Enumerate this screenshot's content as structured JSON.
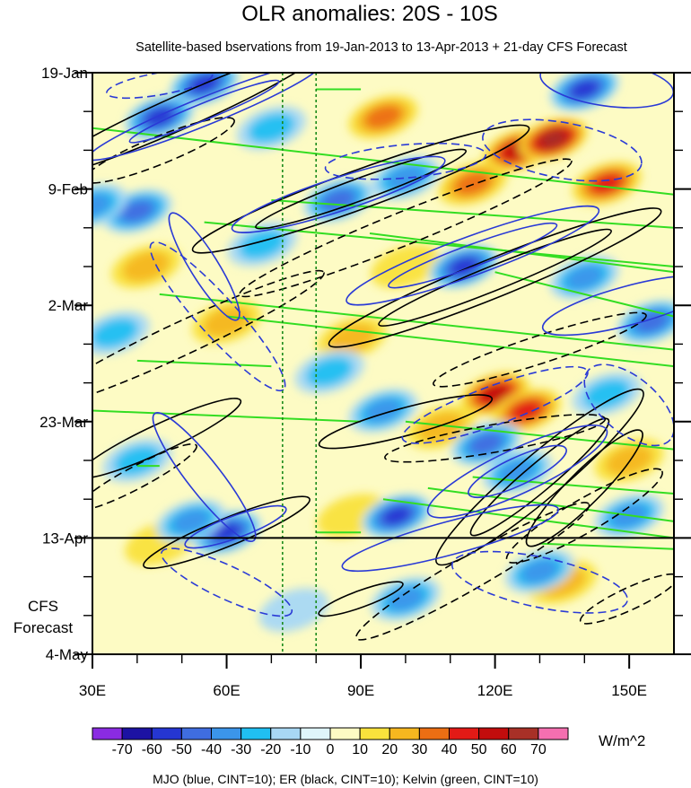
{
  "chart_data": {
    "type": "heatmap",
    "title": "OLR anomalies: 20S - 10S",
    "subtitle": "Satellite-based bservations from 19-Jan-2013 to 13-Apr-2013 + 21-day CFS Forecast",
    "x_range": [
      30,
      160
    ],
    "x_ticks": [
      {
        "label": "30E",
        "value": 30
      },
      {
        "label": "60E",
        "value": 60
      },
      {
        "label": "90E",
        "value": 90
      },
      {
        "label": "120E",
        "value": 120
      },
      {
        "label": "150E",
        "value": 150
      }
    ],
    "y_range_days": [
      0,
      105
    ],
    "y_ticks": [
      {
        "label": "19-Jan",
        "day": 0
      },
      {
        "label": "9-Feb",
        "day": 21
      },
      {
        "label": "2-Mar",
        "day": 42
      },
      {
        "label": "23-Mar",
        "day": 63
      },
      {
        "label": "13-Apr",
        "day": 84
      },
      {
        "label": "4-May",
        "day": 105
      }
    ],
    "forecast_label": [
      "CFS",
      "Forecast"
    ],
    "forecast_start_day": 84,
    "reference_lines_lon": [
      72.5,
      80
    ],
    "colorbar": {
      "unit": "W/m^2",
      "levels": [
        -70,
        -60,
        -50,
        -40,
        -30,
        -20,
        -10,
        0,
        10,
        20,
        30,
        40,
        50,
        60,
        70
      ],
      "labels": [
        "-70",
        "-60",
        "-50",
        "-40",
        "-30",
        "-20",
        "-10",
        "0",
        "10",
        "20",
        "30",
        "40",
        "50",
        "60",
        "70"
      ],
      "colors": [
        "#8a2be2",
        "#1c12a3",
        "#2536d2",
        "#3f6de0",
        "#3b95ea",
        "#20bff2",
        "#a8d8f4",
        "#dff5fb",
        "#fdfbc4",
        "#f9e23c",
        "#f6b71f",
        "#ec6e13",
        "#e21a16",
        "#c20d0d",
        "#a83027",
        "#f56fb0"
      ]
    },
    "legend": "MJO (blue, CINT=10); ER (black, CINT=10); Kelvin (green, CINT=10)",
    "series_colors": {
      "mjo": "#2a3ad6",
      "er": "#000000",
      "kelvin": "#33dd22",
      "reference": "#1a8a1a"
    },
    "anomaly_features": [
      {
        "lon": 125,
        "day": 14,
        "value": 62
      },
      {
        "lon": 133,
        "day": 12,
        "value": 72
      },
      {
        "lon": 145,
        "day": 20,
        "value": 45
      },
      {
        "lon": 115,
        "day": 20,
        "value": 38
      },
      {
        "lon": 95,
        "day": 8,
        "value": 36
      },
      {
        "lon": 120,
        "day": 58,
        "value": 55
      },
      {
        "lon": 127,
        "day": 61,
        "value": 48
      },
      {
        "lon": 108,
        "day": 64,
        "value": 32
      },
      {
        "lon": 42,
        "day": 35,
        "value": 32
      },
      {
        "lon": 60,
        "day": 45,
        "value": 28
      },
      {
        "lon": 88,
        "day": 48,
        "value": 26
      },
      {
        "lon": 88,
        "day": 80,
        "value": 22
      },
      {
        "lon": 135,
        "day": 92,
        "value": 30
      },
      {
        "lon": 45,
        "day": 85,
        "value": 20
      },
      {
        "lon": 150,
        "day": 70,
        "value": 28
      },
      {
        "lon": 100,
        "day": 35,
        "value": 24
      },
      {
        "lon": 55,
        "day": 2,
        "value": -60
      },
      {
        "lon": 45,
        "day": 8,
        "value": -55
      },
      {
        "lon": 140,
        "day": 3,
        "value": -55
      },
      {
        "lon": 85,
        "day": 23,
        "value": -45
      },
      {
        "lon": 100,
        "day": 19,
        "value": -40
      },
      {
        "lon": 113,
        "day": 35,
        "value": -62
      },
      {
        "lon": 140,
        "day": 37,
        "value": -40
      },
      {
        "lon": 155,
        "day": 45,
        "value": -52
      },
      {
        "lon": 40,
        "day": 25,
        "value": -45
      },
      {
        "lon": 30,
        "day": 24,
        "value": -35
      },
      {
        "lon": 68,
        "day": 31,
        "value": -30
      },
      {
        "lon": 60,
        "day": 83,
        "value": -62
      },
      {
        "lon": 52,
        "day": 81,
        "value": -40
      },
      {
        "lon": 118,
        "day": 67,
        "value": -50
      },
      {
        "lon": 98,
        "day": 80,
        "value": -55
      },
      {
        "lon": 125,
        "day": 72,
        "value": -42
      },
      {
        "lon": 95,
        "day": 61,
        "value": -40
      },
      {
        "lon": 83,
        "day": 54,
        "value": -30
      },
      {
        "lon": 130,
        "day": 90,
        "value": -38
      },
      {
        "lon": 100,
        "day": 95,
        "value": -35
      },
      {
        "lon": 150,
        "day": 80,
        "value": -40
      },
      {
        "lon": 40,
        "day": 70,
        "value": -30
      },
      {
        "lon": 35,
        "day": 47,
        "value": -28
      },
      {
        "lon": 75,
        "day": 97,
        "value": -22
      },
      {
        "lon": 145,
        "day": 58,
        "value": -30
      },
      {
        "lon": 70,
        "day": 10,
        "value": -25
      }
    ],
    "mjo_contours": [
      {
        "lon": 55,
        "day": 7,
        "rx": 28,
        "ry": 2.5,
        "rot": -22,
        "dash": false
      },
      {
        "lon": 55,
        "day": 7,
        "rx": 18,
        "ry": 1.5,
        "rot": -22,
        "dash": false
      },
      {
        "lon": 145,
        "day": 2,
        "rx": 15,
        "ry": 4,
        "rot": 8,
        "dash": false
      },
      {
        "lon": 85,
        "day": 22,
        "rx": 25,
        "ry": 3,
        "rot": -18,
        "dash": false
      },
      {
        "lon": 115,
        "day": 33,
        "rx": 30,
        "ry": 3.5,
        "rot": -20,
        "dash": false
      },
      {
        "lon": 115,
        "day": 33,
        "rx": 20,
        "ry": 2,
        "rot": -20,
        "dash": false
      },
      {
        "lon": 150,
        "day": 42,
        "rx": 20,
        "ry": 3.5,
        "rot": -15,
        "dash": false
      },
      {
        "lon": 55,
        "day": 35,
        "rx": 14,
        "ry": 2.5,
        "rot": 58,
        "dash": false
      },
      {
        "lon": 55,
        "day": 73,
        "rx": 18,
        "ry": 3,
        "rot": 52,
        "dash": false
      },
      {
        "lon": 62,
        "day": 82,
        "rx": 12,
        "ry": 2,
        "rot": -20,
        "dash": false
      },
      {
        "lon": 125,
        "day": 72,
        "rx": 22,
        "ry": 4,
        "rot": -25,
        "dash": false
      },
      {
        "lon": 125,
        "day": 72,
        "rx": 12,
        "ry": 2.5,
        "rot": -25,
        "dash": false
      },
      {
        "lon": 110,
        "day": 84,
        "rx": 25,
        "ry": 3,
        "rot": -15,
        "dash": false
      },
      {
        "lon": 100,
        "day": 16,
        "rx": 18,
        "ry": 3,
        "rot": -5,
        "dash": true
      },
      {
        "lon": 135,
        "day": 14,
        "rx": 18,
        "ry": 5,
        "rot": 10,
        "dash": true
      },
      {
        "lon": 58,
        "day": 44,
        "rx": 22,
        "ry": 3.5,
        "rot": 48,
        "dash": true
      },
      {
        "lon": 120,
        "day": 60,
        "rx": 22,
        "ry": 3.5,
        "rot": -20,
        "dash": true
      },
      {
        "lon": 130,
        "day": 92,
        "rx": 20,
        "ry": 4.5,
        "rot": 12,
        "dash": true
      },
      {
        "lon": 60,
        "day": 92,
        "rx": 16,
        "ry": 3,
        "rot": 25,
        "dash": true
      },
      {
        "lon": 45,
        "day": 2,
        "rx": 12,
        "ry": 2,
        "rot": -10,
        "dash": true
      },
      {
        "lon": 150,
        "day": 60,
        "rx": 12,
        "ry": 5,
        "rot": 40,
        "dash": true
      }
    ],
    "er_contours": [
      {
        "lon": 50,
        "day": 7,
        "rx": 35,
        "ry": 3,
        "rot": -24,
        "dash": false
      },
      {
        "lon": 90,
        "day": 21,
        "rx": 40,
        "ry": 3.5,
        "rot": -20,
        "dash": false
      },
      {
        "lon": 90,
        "day": 21,
        "rx": 25,
        "ry": 2,
        "rot": -20,
        "dash": false
      },
      {
        "lon": 120,
        "day": 37,
        "rx": 40,
        "ry": 3.5,
        "rot": -22,
        "dash": false
      },
      {
        "lon": 120,
        "day": 37,
        "rx": 28,
        "ry": 2.2,
        "rot": -22,
        "dash": false
      },
      {
        "lon": 100,
        "day": 63,
        "rx": 20,
        "ry": 2.5,
        "rot": -15,
        "dash": false
      },
      {
        "lon": 130,
        "day": 73,
        "rx": 30,
        "ry": 4,
        "rot": -40,
        "dash": false
      },
      {
        "lon": 130,
        "day": 73,
        "rx": 20,
        "ry": 2.5,
        "rot": -40,
        "dash": false
      },
      {
        "lon": 60,
        "day": 83,
        "rx": 20,
        "ry": 2.5,
        "rot": -22,
        "dash": false
      },
      {
        "lon": 45,
        "day": 66,
        "rx": 20,
        "ry": 2.5,
        "rot": -25,
        "dash": false
      },
      {
        "lon": 140,
        "day": 75,
        "rx": 18,
        "ry": 3,
        "rot": -45,
        "dash": false
      },
      {
        "lon": 90,
        "day": 95,
        "rx": 10,
        "ry": 1.5,
        "rot": -20,
        "dash": false
      },
      {
        "lon": 100,
        "day": 28,
        "rx": 40,
        "ry": 3,
        "rot": -22,
        "dash": true
      },
      {
        "lon": 50,
        "day": 48,
        "rx": 35,
        "ry": 3,
        "rot": -25,
        "dash": true
      },
      {
        "lon": 45,
        "day": 14,
        "rx": 18,
        "ry": 2.5,
        "rot": -22,
        "dash": true
      },
      {
        "lon": 120,
        "day": 66,
        "rx": 25,
        "ry": 2.5,
        "rot": -10,
        "dash": true
      },
      {
        "lon": 115,
        "day": 90,
        "rx": 30,
        "ry": 3,
        "rot": -30,
        "dash": true
      },
      {
        "lon": 140,
        "day": 80,
        "rx": 20,
        "ry": 3,
        "rot": -30,
        "dash": true
      },
      {
        "lon": 40,
        "day": 73,
        "rx": 15,
        "ry": 2,
        "rot": -28,
        "dash": true
      },
      {
        "lon": 130,
        "day": 50,
        "rx": 25,
        "ry": 2.5,
        "rot": -18,
        "dash": true
      },
      {
        "lon": 150,
        "day": 95,
        "rx": 12,
        "ry": 2,
        "rot": -25,
        "dash": true
      }
    ],
    "kelvin_lines": [
      {
        "lon1": 30,
        "day1": 10,
        "lon2": 160,
        "day2": 22
      },
      {
        "lon1": 55,
        "day1": 27,
        "lon2": 160,
        "day2": 35
      },
      {
        "lon1": 70,
        "day1": 23,
        "lon2": 160,
        "day2": 28
      },
      {
        "lon1": 45,
        "day1": 40,
        "lon2": 160,
        "day2": 50
      },
      {
        "lon1": 60,
        "day1": 44,
        "lon2": 160,
        "day2": 53
      },
      {
        "lon1": 30,
        "day1": 61,
        "lon2": 90,
        "day2": 63
      },
      {
        "lon1": 100,
        "day1": 63,
        "lon2": 160,
        "day2": 68
      },
      {
        "lon1": 95,
        "day1": 77,
        "lon2": 160,
        "day2": 84
      },
      {
        "lon1": 105,
        "day1": 75,
        "lon2": 160,
        "day2": 81
      },
      {
        "lon1": 80,
        "day1": 3,
        "lon2": 90,
        "day2": 3
      },
      {
        "lon1": 120,
        "day1": 36,
        "lon2": 160,
        "day2": 44
      },
      {
        "lon1": 115,
        "day1": 73,
        "lon2": 160,
        "day2": 76
      },
      {
        "lon1": 40,
        "day1": 52,
        "lon2": 70,
        "day2": 53
      },
      {
        "lon1": 92,
        "day1": 29,
        "lon2": 160,
        "day2": 36
      },
      {
        "lon1": 40,
        "day1": 71,
        "lon2": 45,
        "day2": 71
      },
      {
        "lon1": 80,
        "day1": 83,
        "lon2": 90,
        "day2": 83
      },
      {
        "lon1": 130,
        "day1": 85,
        "lon2": 160,
        "day2": 86
      }
    ]
  }
}
